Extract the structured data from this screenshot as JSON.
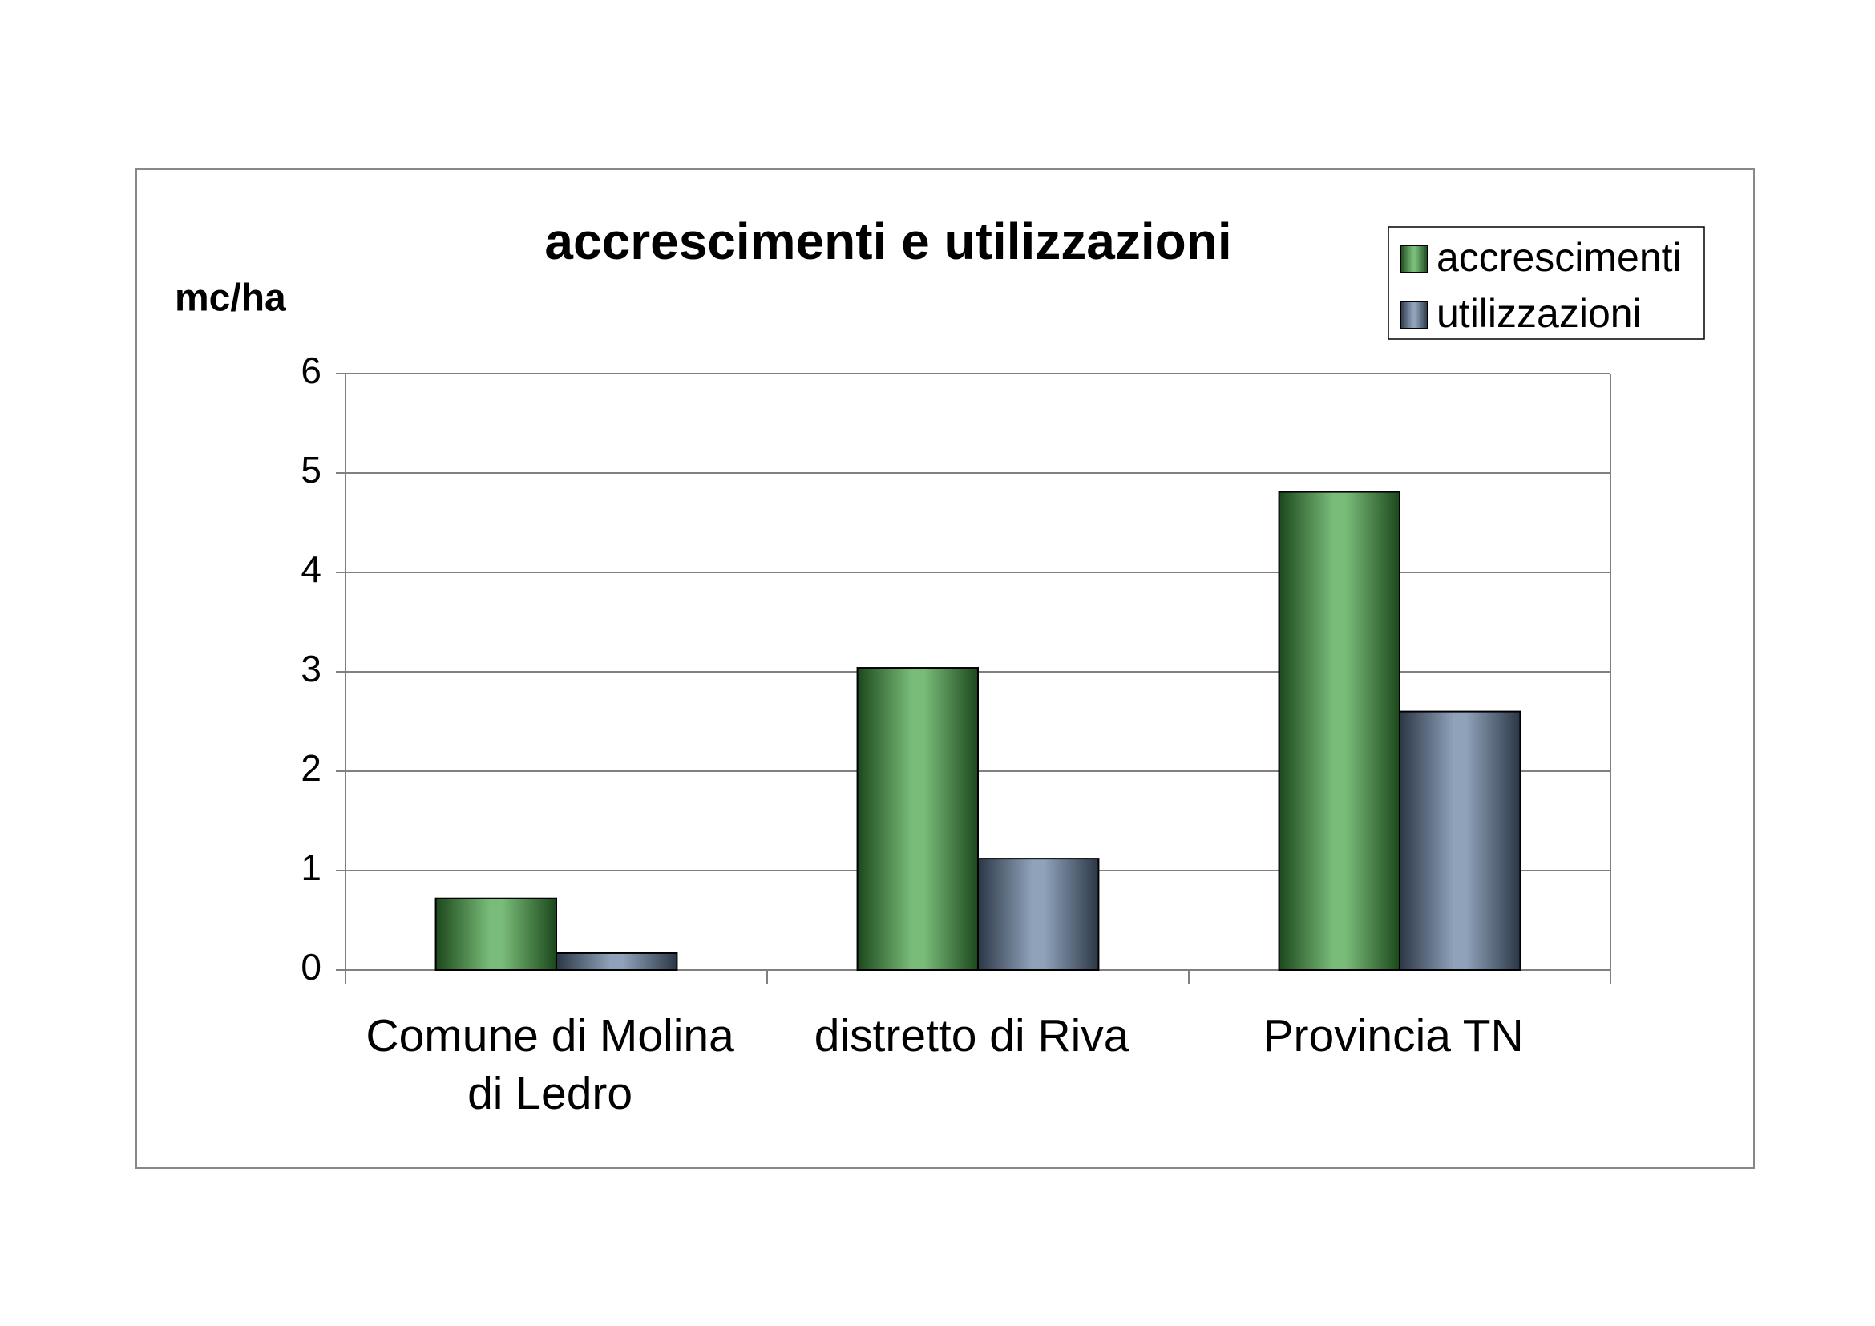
{
  "chart_data": {
    "type": "bar",
    "title": "accrescimenti e utilizzazioni",
    "y_label": "mc/ha",
    "categories": [
      "Comune di Molina di Ledro",
      "distretto di Riva",
      "Provincia TN"
    ],
    "series": [
      {
        "name": "accrescimenti",
        "color": "#3f9f3f",
        "values": [
          0.72,
          3.04,
          4.81
        ]
      },
      {
        "name": "utilizzazioni",
        "color": "#5f7a9c",
        "values": [
          0.17,
          1.12,
          2.6
        ]
      }
    ],
    "ylim": [
      0,
      6
    ],
    "yticks": [
      0,
      1,
      2,
      3,
      4,
      5,
      6
    ],
    "grid": true,
    "legend": "top-right"
  }
}
